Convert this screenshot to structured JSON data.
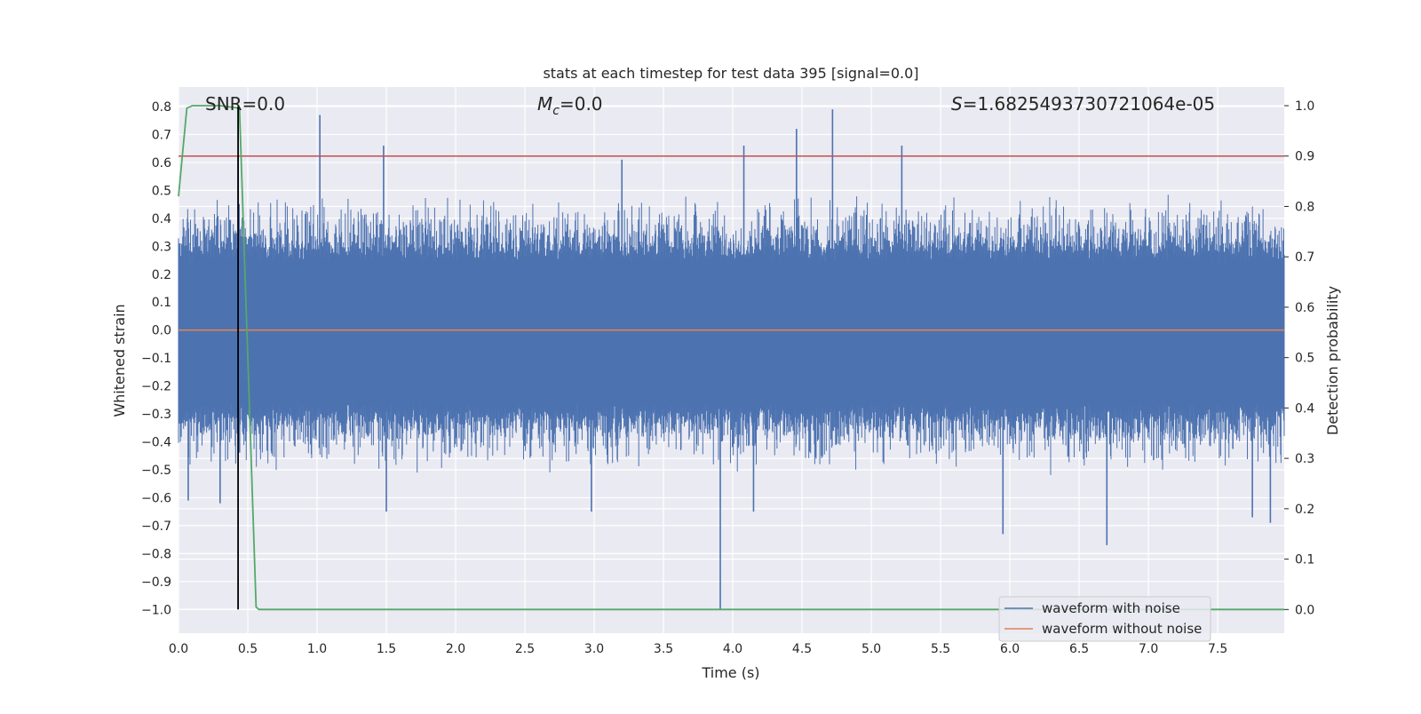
{
  "chart_data": {
    "type": "line",
    "title": "stats at each timestep for test data 395 [signal=0.0]",
    "xlabel": "Time (s)",
    "ylabel": "Whitened strain",
    "y2label": "Detection probability",
    "xlim": [
      0.0,
      7.98
    ],
    "ylim": [
      -1.085,
      0.87
    ],
    "y2lim": [
      -0.047,
      1.037
    ],
    "xticks": [
      "0.0",
      "0.5",
      "1.0",
      "1.5",
      "2.0",
      "2.5",
      "3.0",
      "3.5",
      "4.0",
      "4.5",
      "5.0",
      "5.5",
      "6.0",
      "6.5",
      "7.0",
      "7.5"
    ],
    "yticks": [
      "0.8",
      "0.7",
      "0.6",
      "0.5",
      "0.4",
      "0.3",
      "0.2",
      "0.1",
      "0.0",
      "−0.1",
      "−0.2",
      "−0.3",
      "−0.4",
      "−0.5",
      "−0.6",
      "−0.7",
      "−0.8",
      "−0.9",
      "−1.0"
    ],
    "y2ticks": [
      "1.0",
      "0.9",
      "0.8",
      "0.7",
      "0.6",
      "0.5",
      "0.4",
      "0.3",
      "0.2",
      "0.1",
      "0.0"
    ],
    "grid": true,
    "legend_position": "lower-right",
    "annotations": {
      "snr": "SNR=0.0",
      "mc_symbol": "M",
      "mc_subscript": "c",
      "mc_value": "=0.0",
      "s_symbol": "S",
      "s_value": "=1.6825493730721064e-05"
    },
    "series": [
      {
        "name": "waveform with noise",
        "color": "#4c72b0",
        "axis": "left",
        "description_style": "dense noise",
        "peaks": [
          {
            "x": 1.02,
            "y": 0.77
          },
          {
            "x": 1.48,
            "y": 0.66
          },
          {
            "x": 4.46,
            "y": 0.72
          },
          {
            "x": 4.72,
            "y": 0.79
          },
          {
            "x": 4.08,
            "y": 0.66
          },
          {
            "x": 5.22,
            "y": 0.66
          },
          {
            "x": 0.43,
            "y": 0.62
          },
          {
            "x": 3.2,
            "y": 0.61
          }
        ],
        "troughs": [
          {
            "x": 3.91,
            "y": -1.0
          },
          {
            "x": 6.7,
            "y": -0.77
          },
          {
            "x": 5.95,
            "y": -0.73
          },
          {
            "x": 7.88,
            "y": -0.69
          },
          {
            "x": 7.75,
            "y": -0.67
          },
          {
            "x": 2.98,
            "y": -0.65
          },
          {
            "x": 1.5,
            "y": -0.65
          },
          {
            "x": 4.15,
            "y": -0.65
          },
          {
            "x": 0.07,
            "y": -0.61
          },
          {
            "x": 0.3,
            "y": -0.62
          }
        ]
      },
      {
        "name": "waveform without noise",
        "color": "#dd8452",
        "axis": "left",
        "x": [
          0.0,
          7.98
        ],
        "y": [
          0.0,
          0.0
        ]
      },
      {
        "name": "",
        "color": "#55a868",
        "axis": "right",
        "x": [
          0.0,
          0.06,
          0.1,
          0.16,
          0.3,
          0.44,
          0.56,
          0.58,
          1.0,
          2.0,
          3.0,
          4.0,
          5.0,
          6.0,
          7.0,
          7.98
        ],
        "y": [
          0.82,
          0.995,
          1.0,
          1.0,
          1.0,
          0.995,
          0.005,
          0.0,
          0.0,
          0.0,
          0.0,
          0.0,
          0.0,
          0.0,
          0.0,
          0.0
        ]
      }
    ],
    "threshold_line": {
      "color": "#c44e52",
      "axis": "right",
      "y": 0.9
    },
    "vertical_marker": {
      "color": "#000000",
      "x": 0.43,
      "axis": "left",
      "y_from": -1.0,
      "y_to": 0.8
    }
  }
}
